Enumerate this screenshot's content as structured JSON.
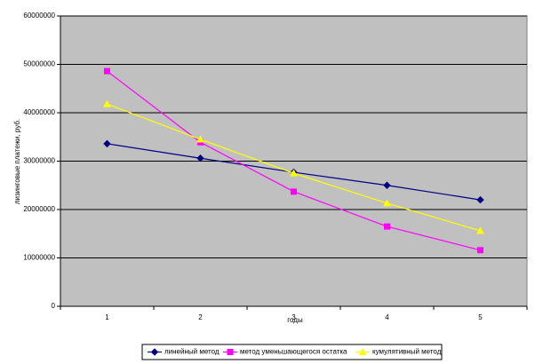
{
  "chart_data": {
    "type": "line",
    "x_label": "годы",
    "y_label": "лизинговые платежи, руб.",
    "categories": [
      "1",
      "2",
      "3",
      "4",
      "5"
    ],
    "series": [
      {
        "name": "линейный метод",
        "color": "#000080",
        "marker": "diamond",
        "values": [
          33600000,
          30600000,
          27700000,
          25000000,
          22000000
        ]
      },
      {
        "name": "метод уменьшающегося остатка",
        "color": "#ff00ff",
        "marker": "square",
        "values": [
          48600000,
          33900000,
          23700000,
          16500000,
          11600000
        ]
      },
      {
        "name": "кумулятивный метод",
        "color": "#ffff00",
        "marker": "triangle",
        "values": [
          41800000,
          34500000,
          27500000,
          21300000,
          15600000
        ]
      }
    ],
    "ylim": [
      0,
      60000000
    ],
    "yticks": [
      0,
      10000000,
      20000000,
      30000000,
      40000000,
      50000000,
      60000000
    ],
    "grid": true,
    "plot_background": "#c0c0c0",
    "legend": "bottom"
  }
}
